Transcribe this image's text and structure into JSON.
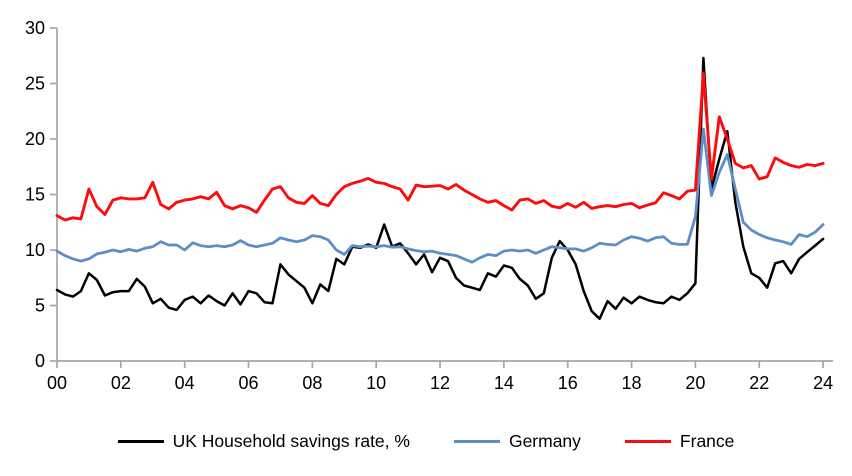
{
  "chart_data": {
    "type": "line",
    "title": "",
    "xlabel": "",
    "ylabel": "",
    "x_unit": "year (quarterly data)",
    "x_range_years": [
      2000,
      2024.25
    ],
    "ylim": [
      0,
      30
    ],
    "grid": false,
    "legend_position": "bottom",
    "axis_color": "#a6a6a6",
    "y_ticks": [
      0,
      5,
      10,
      15,
      20,
      25,
      30
    ],
    "x_tick_labels": [
      "00",
      "02",
      "04",
      "06",
      "08",
      "10",
      "12",
      "14",
      "16",
      "18",
      "20",
      "22",
      "24"
    ],
    "series": [
      {
        "name": "UK Household savings rate, %",
        "color": "#000000",
        "values": [
          6.4,
          6.0,
          5.8,
          6.3,
          7.9,
          7.3,
          5.9,
          6.2,
          6.3,
          6.3,
          7.4,
          6.7,
          5.2,
          5.6,
          4.8,
          4.6,
          5.5,
          5.8,
          5.2,
          5.9,
          5.4,
          5.0,
          6.1,
          5.1,
          6.3,
          6.1,
          5.3,
          5.2,
          8.7,
          7.8,
          7.2,
          6.6,
          5.2,
          6.9,
          6.3,
          9.2,
          8.7,
          10.3,
          10.2,
          10.5,
          10.2,
          12.3,
          10.3,
          10.6,
          9.7,
          8.7,
          9.6,
          8.0,
          9.3,
          9.0,
          7.5,
          6.8,
          6.6,
          6.4,
          7.9,
          7.6,
          8.6,
          8.4,
          7.4,
          6.8,
          5.6,
          6.1,
          9.3,
          10.8,
          10.0,
          8.7,
          6.3,
          4.5,
          3.8,
          5.4,
          4.7,
          5.7,
          5.2,
          5.8,
          5.5,
          5.3,
          5.2,
          5.8,
          5.5,
          6.1,
          7.0,
          27.3,
          15.5,
          18.2,
          20.7,
          14.3,
          10.3,
          7.9,
          7.5,
          6.6,
          8.8,
          9.0,
          7.9,
          9.2,
          9.8,
          10.4,
          11.0
        ]
      },
      {
        "name": "Germany",
        "color": "#5d8fc6",
        "values": [
          9.9,
          9.5,
          9.2,
          9.0,
          9.2,
          9.65,
          9.8,
          10.0,
          9.85,
          10.05,
          9.9,
          10.15,
          10.3,
          10.75,
          10.45,
          10.45,
          10.0,
          10.65,
          10.4,
          10.3,
          10.4,
          10.3,
          10.45,
          10.85,
          10.45,
          10.3,
          10.45,
          10.6,
          11.1,
          10.9,
          10.75,
          10.9,
          11.3,
          11.2,
          10.9,
          10.0,
          9.6,
          10.4,
          10.3,
          10.35,
          10.3,
          10.4,
          10.25,
          10.3,
          10.1,
          9.95,
          9.85,
          9.9,
          9.7,
          9.6,
          9.5,
          9.2,
          8.9,
          9.3,
          9.6,
          9.5,
          9.9,
          10.0,
          9.9,
          10.0,
          9.7,
          10.0,
          10.3,
          10.2,
          10.1,
          10.1,
          9.9,
          10.2,
          10.6,
          10.5,
          10.45,
          10.9,
          11.2,
          11.05,
          10.8,
          11.1,
          11.2,
          10.6,
          10.5,
          10.5,
          13.0,
          20.9,
          14.9,
          17.0,
          18.6,
          15.5,
          12.5,
          11.8,
          11.4,
          11.1,
          10.9,
          10.75,
          10.5,
          11.4,
          11.2,
          11.6,
          12.3
        ]
      },
      {
        "name": "France",
        "color": "#fb0d0d",
        "values": [
          13.1,
          12.7,
          12.9,
          12.8,
          15.5,
          13.9,
          13.2,
          14.5,
          14.7,
          14.6,
          14.6,
          14.7,
          16.1,
          14.1,
          13.7,
          14.3,
          14.5,
          14.6,
          14.8,
          14.6,
          15.2,
          14.0,
          13.7,
          14.0,
          13.8,
          13.4,
          14.5,
          15.5,
          15.7,
          14.7,
          14.3,
          14.2,
          14.9,
          14.2,
          14.0,
          15.0,
          15.7,
          16.0,
          16.2,
          16.45,
          16.1,
          16.0,
          15.7,
          15.5,
          14.5,
          15.85,
          15.7,
          15.75,
          15.8,
          15.5,
          15.9,
          15.4,
          15.0,
          14.6,
          14.3,
          14.45,
          14.0,
          13.6,
          14.5,
          14.6,
          14.2,
          14.45,
          13.95,
          13.8,
          14.2,
          13.85,
          14.3,
          13.75,
          13.9,
          14.0,
          13.9,
          14.1,
          14.2,
          13.8,
          14.05,
          14.25,
          15.15,
          14.9,
          14.6,
          15.3,
          15.4,
          25.9,
          16.4,
          22.0,
          20.0,
          17.8,
          17.4,
          17.6,
          16.4,
          16.6,
          18.3,
          17.9,
          17.6,
          17.45,
          17.7,
          17.6,
          17.8
        ]
      }
    ]
  }
}
